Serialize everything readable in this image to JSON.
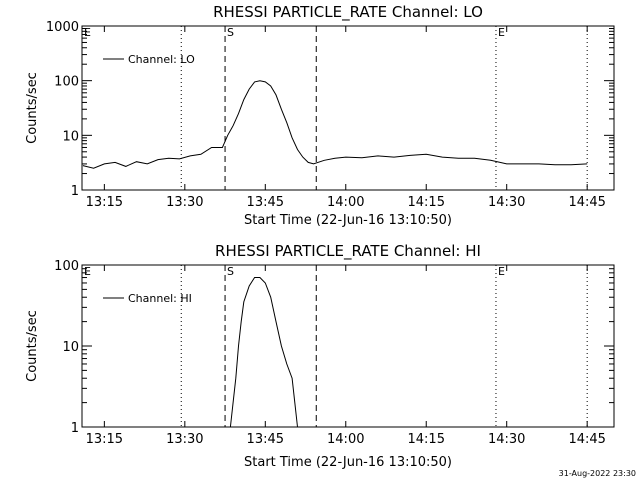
{
  "footer": {
    "timestamp": "31-Aug-2022 23:30"
  },
  "chart_data": [
    {
      "type": "line",
      "title": "RHESSI PARTICLE_RATE Channel: LO",
      "xlabel": "Start Time (22-Jun-16 13:10:50)",
      "ylabel": "Counts/sec",
      "yscale": "log",
      "xlim": [
        "13:10:50",
        "14:50:00"
      ],
      "ylim": [
        1,
        1000
      ],
      "x_ticks": [
        "13:15",
        "13:30",
        "13:45",
        "14:00",
        "14:15",
        "14:30",
        "14:45"
      ],
      "y_ticks": [
        "1",
        "10",
        "100",
        "1000"
      ],
      "legend": "Channel: LO",
      "markers": [
        {
          "label": "E",
          "time": "13:10:50",
          "style": "dotted"
        },
        {
          "label": "",
          "time": "13:29:20",
          "style": "dotted"
        },
        {
          "label": "S",
          "time": "13:37:30",
          "style": "dashed"
        },
        {
          "label": "",
          "time": "13:54:30",
          "style": "dashed"
        },
        {
          "label": "E",
          "time": "14:28:00",
          "style": "dotted"
        },
        {
          "label": "",
          "time": "14:45:00",
          "style": "dotted"
        }
      ],
      "series": [
        {
          "name": "Channel: LO",
          "x": [
            "13:11",
            "13:13",
            "13:15",
            "13:17",
            "13:19",
            "13:21",
            "13:23",
            "13:25",
            "13:27",
            "13:29",
            "13:31",
            "13:33",
            "13:35",
            "13:37",
            "13:38",
            "13:39",
            "13:40",
            "13:41",
            "13:42",
            "13:43",
            "13:44",
            "13:45",
            "13:46",
            "13:47",
            "13:48",
            "13:49",
            "13:50",
            "13:51",
            "13:52",
            "13:53",
            "13:54",
            "13:56",
            "13:58",
            "14:00",
            "14:03",
            "14:06",
            "14:09",
            "14:12",
            "14:15",
            "14:18",
            "14:21",
            "14:24",
            "14:27",
            "14:30",
            "14:33",
            "14:36",
            "14:39",
            "14:42",
            "14:45"
          ],
          "values": [
            2.8,
            2.5,
            3.0,
            3.2,
            2.7,
            3.3,
            3.0,
            3.6,
            3.8,
            3.7,
            4.2,
            4.5,
            6.0,
            6.0,
            10,
            15,
            25,
            45,
            70,
            95,
            100,
            95,
            80,
            55,
            30,
            17,
            9,
            5.5,
            4.0,
            3.2,
            3.0,
            3.5,
            3.8,
            4.0,
            3.9,
            4.2,
            4.0,
            4.3,
            4.5,
            4.0,
            3.8,
            3.8,
            3.5,
            3.0,
            3.0,
            3.0,
            2.9,
            2.9,
            3.0
          ]
        }
      ]
    },
    {
      "type": "line",
      "title": "RHESSI PARTICLE_RATE Channel: HI",
      "xlabel": "Start Time (22-Jun-16 13:10:50)",
      "ylabel": "Counts/sec",
      "yscale": "log",
      "xlim": [
        "13:10:50",
        "14:50:00"
      ],
      "ylim": [
        1,
        100
      ],
      "x_ticks": [
        "13:15",
        "13:30",
        "13:45",
        "14:00",
        "14:15",
        "14:30",
        "14:45"
      ],
      "y_ticks": [
        "1",
        "10",
        "100"
      ],
      "legend": "Channel: HI",
      "markers": [
        {
          "label": "E",
          "time": "13:10:50",
          "style": "dotted"
        },
        {
          "label": "",
          "time": "13:29:20",
          "style": "dotted"
        },
        {
          "label": "S",
          "time": "13:37:30",
          "style": "dashed"
        },
        {
          "label": "",
          "time": "13:54:30",
          "style": "dashed"
        },
        {
          "label": "E",
          "time": "14:28:00",
          "style": "dotted"
        },
        {
          "label": "",
          "time": "14:45:00",
          "style": "dotted"
        }
      ],
      "series": [
        {
          "name": "Channel: HI",
          "x": [
            "13:38:30",
            "13:39",
            "13:39:30",
            "13:40",
            "13:40:30",
            "13:41",
            "13:42",
            "13:43",
            "13:44",
            "13:45",
            "13:46",
            "13:47",
            "13:48",
            "13:49",
            "13:50",
            "13:50:30",
            "13:51"
          ],
          "values": [
            1.0,
            2.0,
            4.0,
            10,
            20,
            35,
            55,
            70,
            70,
            60,
            40,
            20,
            10,
            6,
            4,
            2,
            1.0
          ]
        }
      ]
    }
  ]
}
